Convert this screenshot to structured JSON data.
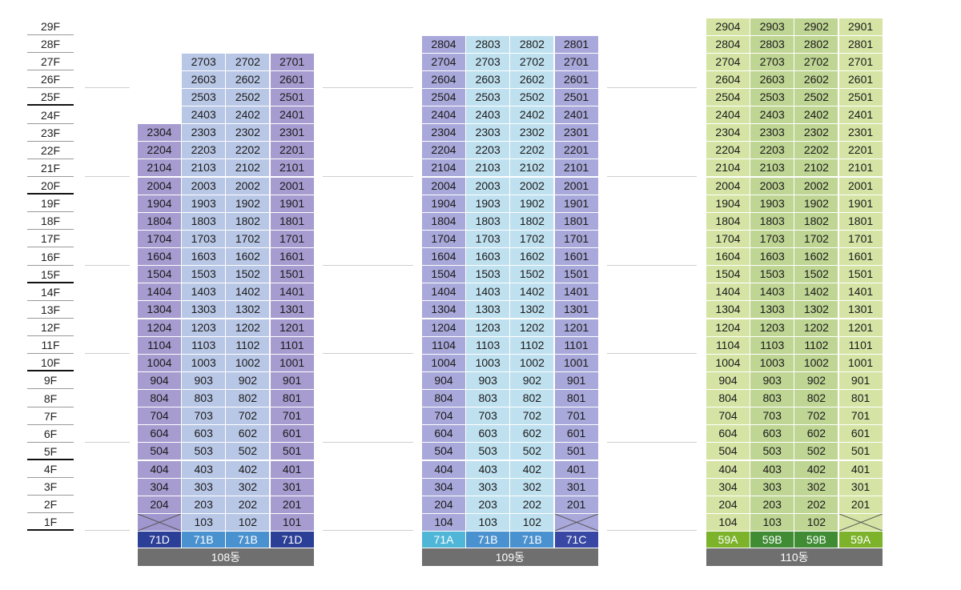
{
  "floors": [
    "29F",
    "28F",
    "27F",
    "26F",
    "25F",
    "24F",
    "23F",
    "22F",
    "21F",
    "20F",
    "19F",
    "18F",
    "17F",
    "16F",
    "15F",
    "14F",
    "13F",
    "12F",
    "11F",
    "10F",
    "9F",
    "8F",
    "7F",
    "6F",
    "5F",
    "4F",
    "3F",
    "2F",
    "1F"
  ],
  "buildings": [
    {
      "name": "108동",
      "top_floors": [
        23,
        27,
        27,
        27
      ],
      "line_numbers": [
        "04",
        "03",
        "02",
        "01"
      ],
      "unit_types": [
        "71D",
        "71B",
        "71B",
        "71D"
      ],
      "unit_type_colors": [
        "#2c3f97",
        "#4a91cf",
        "#4a91cf",
        "#2c3f97"
      ],
      "blank_ground_units": [
        0
      ]
    },
    {
      "name": "109동",
      "top_floors": [
        28,
        28,
        28,
        28
      ],
      "line_numbers": [
        "04",
        "03",
        "02",
        "01"
      ],
      "unit_types": [
        "71A",
        "71B",
        "71B",
        "71C"
      ],
      "unit_type_colors": [
        "#4fb6d8",
        "#4a91cf",
        "#4a91cf",
        "#3747a3"
      ],
      "blank_ground_units": [
        3
      ]
    },
    {
      "name": "110동",
      "top_floors": [
        29,
        29,
        29,
        29
      ],
      "line_numbers": [
        "04",
        "03",
        "02",
        "01"
      ],
      "unit_types": [
        "59A",
        "59B",
        "59B",
        "59A"
      ],
      "unit_type_colors": [
        "#7cb32a",
        "#3f8c34",
        "#3f8c34",
        "#7cb32a"
      ],
      "blank_ground_units": [
        3
      ]
    }
  ],
  "colors": {
    "floor_line": "#999999",
    "floor_line_major": "#111111",
    "building_label_bg": "#6f6f6f"
  }
}
